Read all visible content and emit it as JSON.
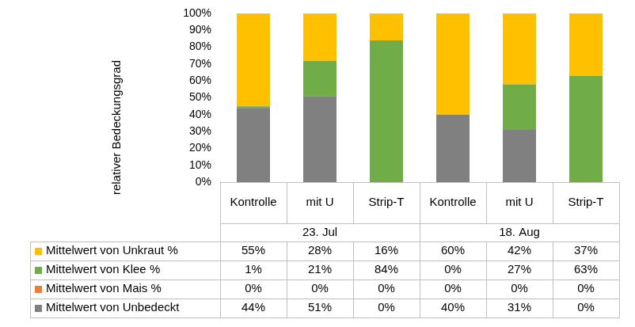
{
  "chart_data": {
    "type": "bar",
    "ylabel": "relativer Bedeckungsgrad",
    "categories": [
      "Kontrolle",
      "mit U",
      "Strip-T",
      "Kontrolle",
      "mit U",
      "Strip-T"
    ],
    "category_groups": [
      "23. Jul",
      "18. Aug"
    ],
    "series": [
      {
        "name": "Mittelwert von Unkraut %",
        "color": "#FFC000",
        "values": [
          55,
          28,
          16,
          60,
          42,
          37
        ],
        "value_labels": [
          "55%",
          "28%",
          "16%",
          "60%",
          "42%",
          "37%"
        ]
      },
      {
        "name": "Mittelwert von Klee %",
        "color": "#70AD47",
        "values": [
          1,
          21,
          84,
          0,
          27,
          63
        ],
        "value_labels": [
          "1%",
          "21%",
          "84%",
          "0%",
          "27%",
          "63%"
        ]
      },
      {
        "name": "Mittelwert von Mais %",
        "color": "#ED7D31",
        "values": [
          0,
          0,
          0,
          0,
          0,
          0
        ],
        "value_labels": [
          "0%",
          "0%",
          "0%",
          "0%",
          "0%",
          "0%"
        ]
      },
      {
        "name": "Mittelwert von Unbedeckt",
        "color": "#808080",
        "values": [
          44,
          51,
          0,
          40,
          31,
          0
        ],
        "value_labels": [
          "44%",
          "51%",
          "0%",
          "40%",
          "31%",
          "0%"
        ]
      }
    ],
    "stacked": true,
    "grid": false,
    "ylim": [
      0,
      100
    ],
    "yticks": [
      {
        "value": 0,
        "label": "0%"
      },
      {
        "value": 10,
        "label": "10%"
      },
      {
        "value": 20,
        "label": "20%"
      },
      {
        "value": 30,
        "label": "30%"
      },
      {
        "value": 40,
        "label": "40%"
      },
      {
        "value": 50,
        "label": "50%"
      },
      {
        "value": 60,
        "label": "60%"
      },
      {
        "value": 70,
        "label": "70%"
      },
      {
        "value": 80,
        "label": "80%"
      },
      {
        "value": 90,
        "label": "90%"
      },
      {
        "value": 100,
        "label": "100%"
      }
    ]
  }
}
